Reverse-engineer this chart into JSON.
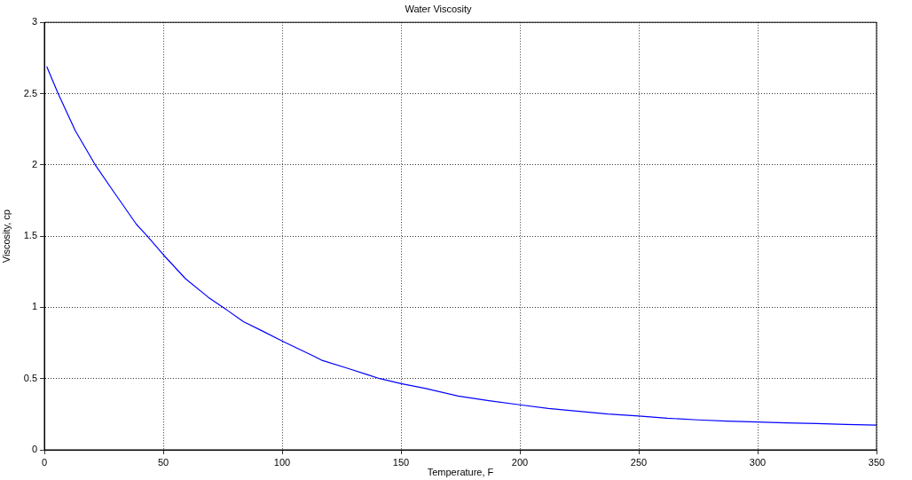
{
  "chart_data": {
    "type": "line",
    "title": "Water Viscosity",
    "xlabel": "Temperature, F",
    "ylabel": "Viscosity, cp",
    "x": [
      1,
      5.8,
      13,
      21.4,
      29,
      38.7,
      43.3,
      50,
      59.4,
      69,
      75.2,
      83.7,
      91,
      100.5,
      113,
      116.5,
      128,
      136,
      141,
      150,
      160,
      174,
      187,
      200,
      212,
      225,
      237,
      250,
      262,
      275,
      287,
      300,
      312,
      325,
      337,
      350
    ],
    "series": [
      {
        "color": "#0000ff",
        "values": [
          2.69,
          2.5,
          2.24,
          2.0,
          1.815,
          1.583,
          1.5,
          1.37,
          1.2,
          1.07,
          1.0,
          0.9,
          0.84,
          0.76,
          0.66,
          0.63,
          0.57,
          0.527,
          0.5,
          0.465,
          0.432,
          0.378,
          0.345,
          0.316,
          0.29,
          0.27,
          0.252,
          0.238,
          0.222,
          0.21,
          0.201,
          0.195,
          0.189,
          0.184,
          0.178,
          0.173
        ]
      }
    ],
    "xlim": [
      0,
      350
    ],
    "xticks": [
      0,
      50,
      100,
      150,
      200,
      250,
      300,
      350
    ],
    "ylim": [
      0,
      3
    ],
    "yticks": [
      0,
      0.5,
      1,
      1.5,
      2,
      2.5,
      3
    ],
    "grid": true,
    "legend": false,
    "marker": "none",
    "line_style": "solid"
  }
}
